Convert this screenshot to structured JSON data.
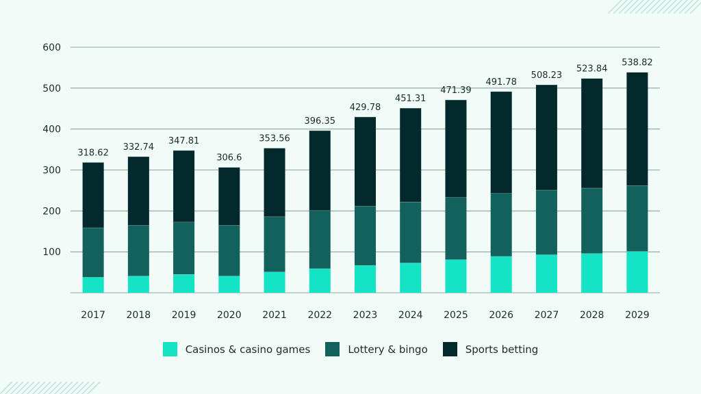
{
  "chart_data": {
    "type": "bar",
    "stacked": true,
    "categories": [
      "2017",
      "2018",
      "2019",
      "2020",
      "2021",
      "2022",
      "2023",
      "2024",
      "2025",
      "2026",
      "2027",
      "2028",
      "2029"
    ],
    "series": [
      {
        "name": "Casinos & casino games",
        "color": "#14e3c5",
        "values": [
          38,
          41,
          45,
          41,
          51,
          59,
          67,
          73,
          81,
          89,
          93,
          96,
          101
        ]
      },
      {
        "name": "Lottery & bingo",
        "color": "#12615c",
        "values": [
          121,
          124,
          128,
          124,
          135,
          142,
          145,
          149,
          152,
          154,
          158,
          160,
          161
        ]
      },
      {
        "name": "Sports betting",
        "color": "#04292d",
        "values": [
          159.62,
          167.74,
          174.81,
          141.6,
          167.56,
          195.35,
          217.78,
          229.31,
          238.39,
          248.78,
          257.23,
          267.84,
          276.82
        ]
      }
    ],
    "totals": [
      "318.62",
      "332.74",
      "347.81",
      "306.6",
      "353.56",
      "396.35",
      "429.78",
      "451.31",
      "471.39",
      "491.78",
      "508.23",
      "523.84",
      "538.82"
    ],
    "y_ticks": [
      "600",
      "500",
      "400",
      "300",
      "200",
      "100"
    ],
    "ylim": [
      0,
      600
    ],
    "grid": true,
    "legend_position": "bottom"
  }
}
